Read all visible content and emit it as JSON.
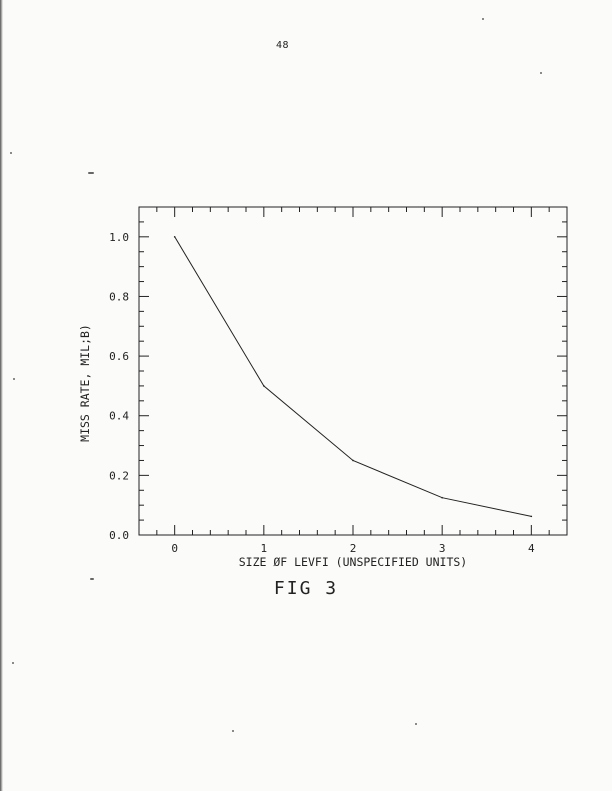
{
  "page": {
    "number": "48"
  },
  "figure": {
    "caption": "FIG 3"
  },
  "chart_data": {
    "type": "line",
    "xlabel": "SIZE ØF LEVFI (UNSPECIFIED UNITS)",
    "ylabel": "MISS RATE, MIL;B)",
    "xlim": [
      -0.4,
      4.4
    ],
    "ylim": [
      0.0,
      1.1
    ],
    "x_ticks": [
      0,
      1,
      2,
      3,
      4
    ],
    "x_tick_labels": [
      "0",
      "1",
      "2",
      "3",
      "4"
    ],
    "y_ticks": [
      0.0,
      0.2,
      0.4,
      0.6,
      0.8,
      1.0
    ],
    "y_tick_labels": [
      "0.0",
      "0.2",
      "0.4",
      "0.6",
      "0.8",
      "1.0"
    ],
    "grid": false,
    "series": [
      {
        "x": [
          0,
          1,
          2,
          3,
          4
        ],
        "values": [
          1.0,
          0.5,
          0.25,
          0.125,
          0.0625
        ]
      }
    ],
    "color": "#222222"
  }
}
